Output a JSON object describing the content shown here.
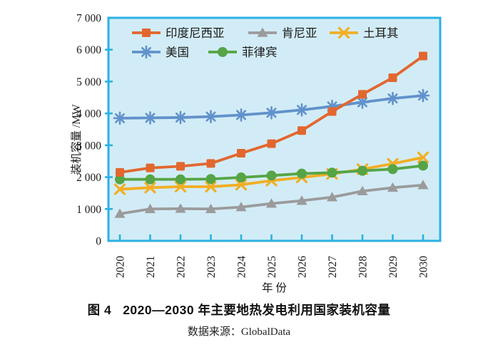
{
  "figure": {
    "caption_label": "图 4",
    "caption_title": "2020—2030 年主要地热发电利用国家装机容量",
    "source": "数据来源：GlobalData"
  },
  "chart_data": {
    "type": "line",
    "title": "",
    "xlabel": "年 份",
    "ylabel": "装机容量 /MW",
    "x": [
      2020,
      2021,
      2022,
      2023,
      2024,
      2025,
      2026,
      2027,
      2028,
      2029,
      2030
    ],
    "x_tick_labels": [
      "2020",
      "2021",
      "2022",
      "2023",
      "2024",
      "2025",
      "2026",
      "2027",
      "2028",
      "2029",
      "2030"
    ],
    "ylim": [
      0,
      7000
    ],
    "y_ticks": [
      0,
      1000,
      2000,
      3000,
      4000,
      5000,
      6000,
      7000
    ],
    "y_tick_labels": [
      "0",
      "1 000",
      "2 000",
      "3 000",
      "4 000",
      "5 000",
      "6 000",
      "7 000"
    ],
    "grid": false,
    "legend_position": "inside-top-left",
    "plot_bg": "#d2ecf7",
    "plot_border": "#2ab1e3",
    "text_color": "#1a1a1a",
    "series": [
      {
        "name": "印度尼西亚",
        "color": "#e2672e",
        "marker": "square",
        "values": [
          2150,
          2290,
          2340,
          2430,
          2750,
          3050,
          3460,
          4060,
          4600,
          5120,
          5800
        ]
      },
      {
        "name": "肯尼亚",
        "color": "#9b9b9b",
        "marker": "triangle",
        "values": [
          850,
          1000,
          1010,
          1000,
          1060,
          1170,
          1260,
          1370,
          1560,
          1670,
          1750
        ]
      },
      {
        "name": "土耳其",
        "color": "#f2ae24",
        "marker": "x",
        "values": [
          1620,
          1670,
          1700,
          1700,
          1760,
          1890,
          1990,
          2100,
          2250,
          2420,
          2620
        ]
      },
      {
        "name": "美国",
        "color": "#6292cb",
        "marker": "asterisk",
        "values": [
          3850,
          3860,
          3870,
          3900,
          3950,
          4020,
          4110,
          4220,
          4350,
          4470,
          4560
        ]
      },
      {
        "name": "菲律宾",
        "color": "#55a546",
        "marker": "circle",
        "values": [
          1930,
          1930,
          1930,
          1940,
          1990,
          2050,
          2110,
          2140,
          2200,
          2250,
          2360
        ]
      }
    ]
  }
}
